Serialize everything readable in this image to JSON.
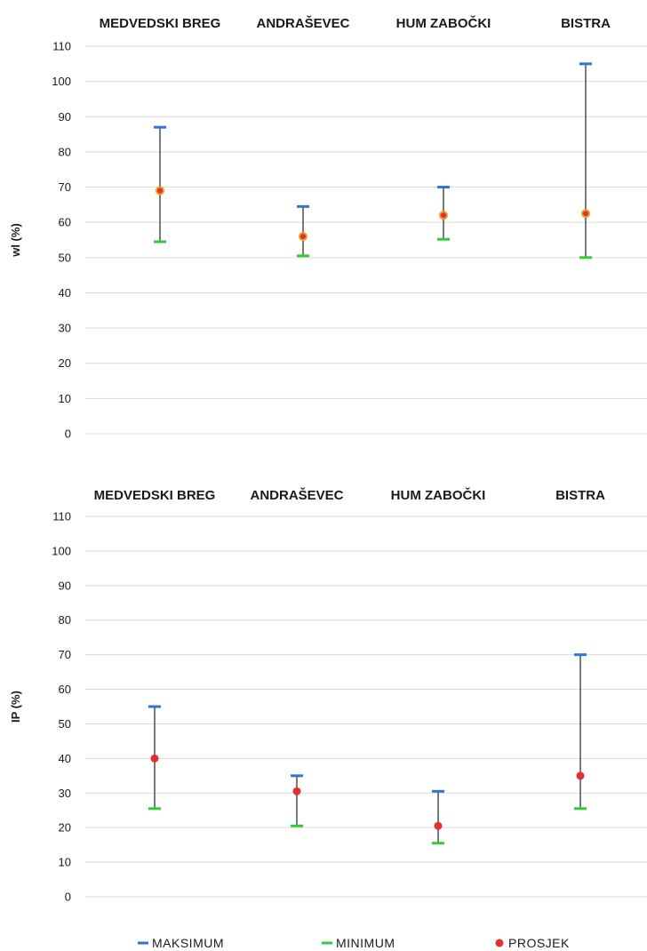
{
  "chart_data": [
    {
      "type": "errorbar",
      "title": "",
      "xlabel": "",
      "ylabel": "wl (%)",
      "ylim": [
        0,
        110
      ],
      "ytick_step": 10,
      "grid": true,
      "categories": [
        "MEDVEDSKI BREG",
        "ANDRAŠEVEC",
        "HUM ZABOČKI",
        "BISTRA"
      ],
      "series": [
        {
          "name": "MAKSIMUM",
          "color": "#2e75d6",
          "values": [
            87,
            64.5,
            70,
            105
          ]
        },
        {
          "name": "MINIMUM",
          "color": "#33cc33",
          "values": [
            54.5,
            50.5,
            55.2,
            50
          ]
        },
        {
          "name": "PROSJEK",
          "color": "#e03030",
          "values": [
            69,
            56,
            62,
            62.5
          ]
        }
      ]
    },
    {
      "type": "errorbar",
      "title": "",
      "xlabel": "",
      "ylabel": "IP (%)",
      "ylim": [
        0,
        110
      ],
      "ytick_step": 10,
      "grid": true,
      "categories": [
        "MEDVEDSKI BREG",
        "ANDRAŠEVEC",
        "HUM ZABOČKI",
        "BISTRA"
      ],
      "series": [
        {
          "name": "MAKSIMUM",
          "color": "#2e75d6",
          "values": [
            55,
            35,
            30.5,
            70
          ]
        },
        {
          "name": "MINIMUM",
          "color": "#33cc33",
          "values": [
            25.5,
            20.5,
            15.5,
            25.5
          ]
        },
        {
          "name": "PROSJEK",
          "color": "#e03030",
          "values": [
            40,
            30.5,
            20.5,
            35
          ]
        }
      ]
    }
  ],
  "legend": {
    "placement": "bottom",
    "items": [
      {
        "name": "MAKSIMUM",
        "color": "#2e75d6",
        "marker": "dash"
      },
      {
        "name": "MINIMUM",
        "color": "#33cc33",
        "marker": "dash"
      },
      {
        "name": "PROSJEK",
        "color": "#e03030",
        "marker": "dot"
      }
    ]
  }
}
